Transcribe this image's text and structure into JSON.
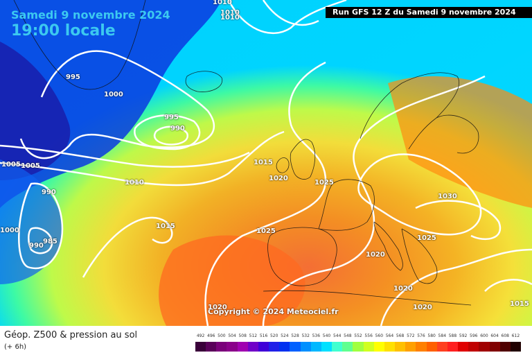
{
  "header": {
    "date_line": "Samedi 9 novembre 2024",
    "time_line": "19:00 locale",
    "run_info": "Run GFS 12 Z du Samedi 9 novembre 2024"
  },
  "map": {
    "copyright": "Copyright © 2024 Meteociel.fr",
    "isobar_labels": [
      "1010",
      "1010",
      "1010",
      "995",
      "1000",
      "995",
      "990",
      "1005",
      "1005",
      "1010",
      "1015",
      "1020",
      "1025",
      "990",
      "985",
      "990",
      "1000",
      "1015",
      "1025",
      "1030",
      "1025",
      "1020",
      "1020",
      "1020",
      "1020",
      "1015"
    ]
  },
  "footer": {
    "title": "Géop. Z500 & pression au sol",
    "subtitle": "(+ 6h)",
    "scale_values": [
      "492",
      "496",
      "500",
      "504",
      "508",
      "512",
      "516",
      "520",
      "524",
      "528",
      "532",
      "536",
      "540",
      "544",
      "548",
      "552",
      "556",
      "560",
      "564",
      "568",
      "572",
      "576",
      "580",
      "584",
      "588",
      "592",
      "596",
      "600",
      "604",
      "608",
      "612"
    ],
    "scale_colors": [
      "#3a003a",
      "#5a005a",
      "#7a007a",
      "#8a008a",
      "#a000b0",
      "#7000c8",
      "#4000d8",
      "#2020e8",
      "#0030f0",
      "#0060ff",
      "#0090ff",
      "#00b8ff",
      "#00e0ff",
      "#40ffd0",
      "#60ff90",
      "#a0ff40",
      "#d0ff20",
      "#ffff00",
      "#ffe000",
      "#ffc000",
      "#ffa000",
      "#ff8000",
      "#ff6000",
      "#ff4020",
      "#ff2020",
      "#e00000",
      "#c00000",
      "#a00000",
      "#800000",
      "#500000",
      "#200000"
    ]
  }
}
